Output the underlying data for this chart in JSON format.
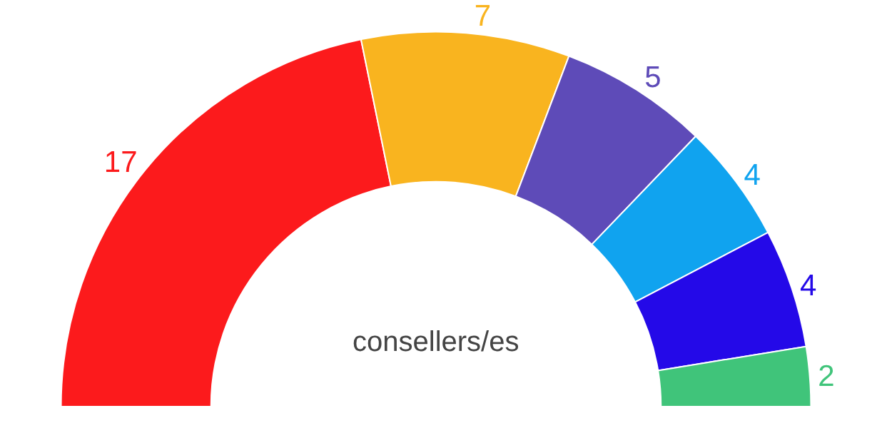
{
  "chart_data": {
    "type": "donut",
    "categories": [
      null,
      null,
      null,
      null,
      null,
      null
    ],
    "values": [
      17,
      7,
      5,
      4,
      4,
      2
    ],
    "colors": [
      "#fc1a1c",
      "#f9b41f",
      "#5e4bb8",
      "#10a3ef",
      "#2409e8",
      "#40c47a"
    ],
    "data_labels": true,
    "legend": false,
    "annotations": [
      "consellers/es"
    ]
  }
}
